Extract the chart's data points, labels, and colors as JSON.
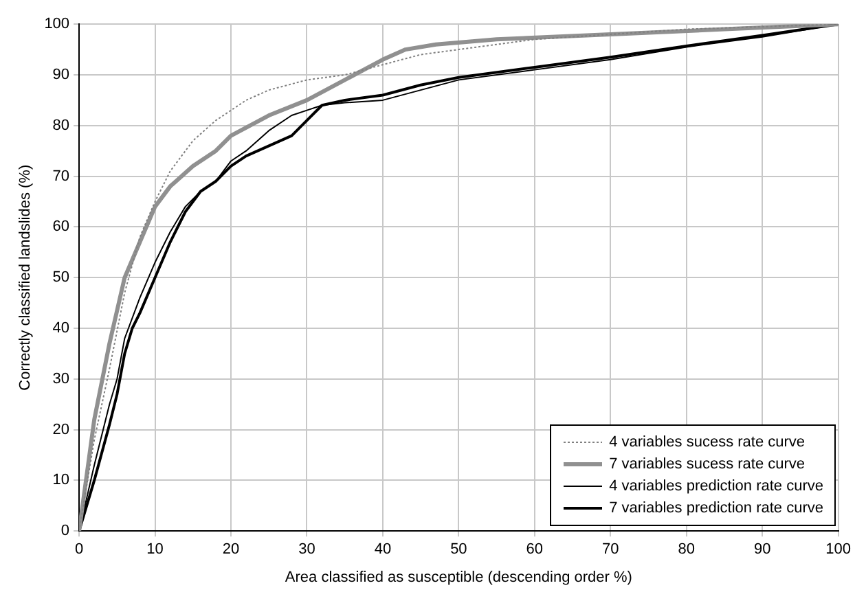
{
  "chart_data": {
    "type": "line",
    "xlabel": "Area classified as susceptible (descending order %)",
    "ylabel": "Correctly classified landslides (%)",
    "xlim": [
      0,
      100
    ],
    "ylim": [
      0,
      100
    ],
    "xticks": [
      0,
      10,
      20,
      30,
      40,
      50,
      60,
      70,
      80,
      90,
      100
    ],
    "yticks": [
      0,
      10,
      20,
      30,
      40,
      50,
      60,
      70,
      80,
      90,
      100
    ],
    "grid": true,
    "legend": "bottom right",
    "marker": "none",
    "series": [
      {
        "name": "4 variables sucess rate curve",
        "color": "#808080",
        "line_style": "dotted",
        "x": [
          0,
          2,
          4,
          6,
          8,
          10,
          12,
          15,
          18,
          20,
          22,
          25,
          30,
          35,
          40,
          45,
          50,
          55,
          60,
          70,
          80,
          90,
          100
        ],
        "values": [
          0,
          18,
          32,
          47,
          58,
          65,
          71,
          77,
          81,
          83,
          85,
          87,
          89,
          90,
          92,
          94,
          95,
          96,
          97,
          98,
          99,
          99.5,
          100
        ]
      },
      {
        "name": "7 variables sucess rate curve",
        "color": "#909090",
        "line_style": "solid",
        "x": [
          0,
          2,
          4,
          6,
          8,
          10,
          12,
          15,
          18,
          20,
          25,
          30,
          35,
          40,
          43,
          47,
          55,
          70,
          85,
          100
        ],
        "values": [
          0,
          22,
          37,
          50,
          57,
          64,
          68,
          72,
          75,
          78,
          82,
          85,
          89,
          93,
          95,
          96,
          97,
          98,
          99,
          100
        ]
      },
      {
        "name": "4 variables prediction rate curve",
        "color": "#000000",
        "line_style": "solid",
        "x": [
          0,
          2,
          4,
          5,
          6,
          8,
          10,
          12,
          14,
          16,
          18,
          20,
          22,
          25,
          28,
          30,
          32,
          35,
          40,
          45,
          50,
          60,
          70,
          80,
          90,
          100
        ],
        "values": [
          0,
          13,
          25,
          30,
          38,
          46,
          53,
          59,
          64,
          67,
          69,
          73,
          75,
          79,
          82,
          83,
          84,
          84.5,
          85,
          87,
          89,
          91,
          93,
          95.5,
          97.5,
          100
        ]
      },
      {
        "name": "7 variables prediction rate curve",
        "color": "#000000",
        "line_style": "solid",
        "x": [
          0,
          2,
          4,
          5,
          6,
          7,
          8,
          10,
          12,
          14,
          16,
          18,
          20,
          22,
          25,
          28,
          30,
          32,
          35,
          40,
          45,
          50,
          60,
          70,
          80,
          90,
          100
        ],
        "values": [
          0,
          10,
          21,
          27,
          35,
          40,
          43,
          50,
          57,
          63,
          67,
          69,
          72,
          74,
          76,
          78,
          81,
          84,
          85,
          86,
          88,
          89.5,
          91.5,
          93.5,
          95.7,
          97.8,
          100
        ]
      }
    ]
  }
}
